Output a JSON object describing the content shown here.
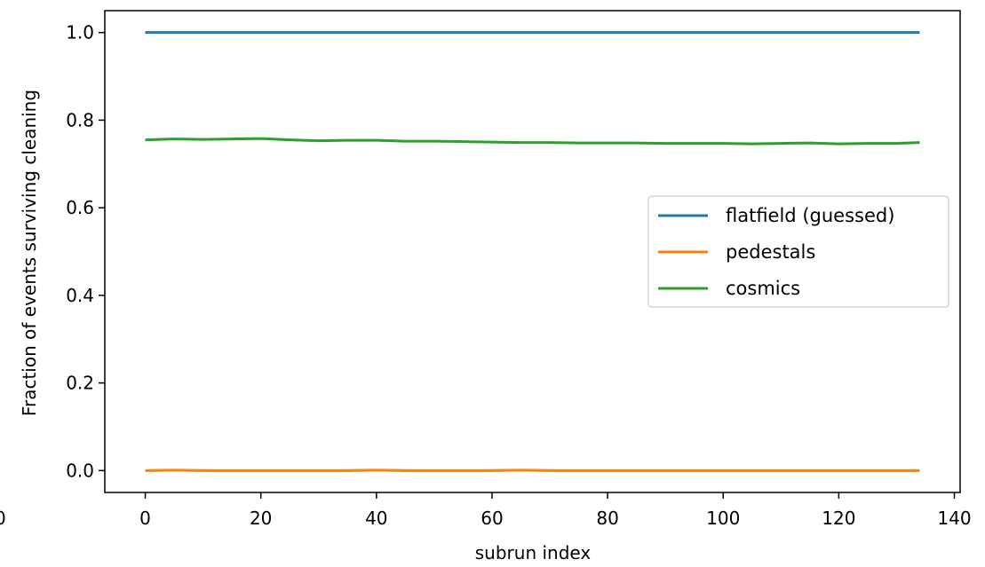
{
  "chart_data": {
    "type": "line",
    "xlabel": "subrun index",
    "ylabel": "Fraction of events surviving cleaning",
    "xlim": [
      -7,
      141
    ],
    "ylim": [
      -0.05,
      1.05
    ],
    "xticks": [
      "0",
      "20",
      "40",
      "60",
      "80",
      "100",
      "120",
      "140"
    ],
    "xtick_values": [
      0,
      20,
      40,
      60,
      80,
      100,
      120,
      140
    ],
    "yticks": [
      "0.0",
      "0.2",
      "0.4",
      "0.6",
      "0.8",
      "1.0"
    ],
    "ytick_values": [
      0.0,
      0.2,
      0.4,
      0.6,
      0.8,
      1.0
    ],
    "partial_left_tick": "0",
    "grid": false,
    "legend_position": "center-right",
    "x": [
      0,
      5,
      10,
      15,
      20,
      25,
      30,
      35,
      40,
      45,
      50,
      55,
      60,
      65,
      70,
      75,
      80,
      85,
      90,
      95,
      100,
      105,
      110,
      115,
      120,
      125,
      130,
      134
    ],
    "series": [
      {
        "name": "flatfield (guessed)",
        "color": "#1f77b4",
        "values": [
          1.0,
          1.0,
          1.0,
          1.0,
          1.0,
          1.0,
          1.0,
          1.0,
          1.0,
          1.0,
          1.0,
          1.0,
          1.0,
          1.0,
          1.0,
          1.0,
          1.0,
          1.0,
          1.0,
          1.0,
          1.0,
          1.0,
          1.0,
          1.0,
          1.0,
          1.0,
          1.0,
          1.0
        ]
      },
      {
        "name": "pedestals",
        "color": "#ff7f0e",
        "values": [
          0.0,
          0.001,
          0.0,
          0.0,
          0.0,
          0.0,
          0.0,
          0.0,
          0.001,
          0.0,
          0.0,
          0.0,
          0.0,
          0.001,
          0.0,
          0.0,
          0.0,
          0.0,
          0.0,
          0.0,
          0.0,
          0.0,
          0.0,
          0.0,
          0.0,
          0.0,
          0.0,
          0.0
        ]
      },
      {
        "name": "cosmics",
        "color": "#2ca02c",
        "values": [
          0.755,
          0.757,
          0.756,
          0.757,
          0.758,
          0.755,
          0.753,
          0.754,
          0.754,
          0.752,
          0.752,
          0.751,
          0.75,
          0.749,
          0.749,
          0.748,
          0.748,
          0.748,
          0.747,
          0.747,
          0.747,
          0.746,
          0.747,
          0.748,
          0.746,
          0.747,
          0.747,
          0.749
        ]
      }
    ]
  }
}
